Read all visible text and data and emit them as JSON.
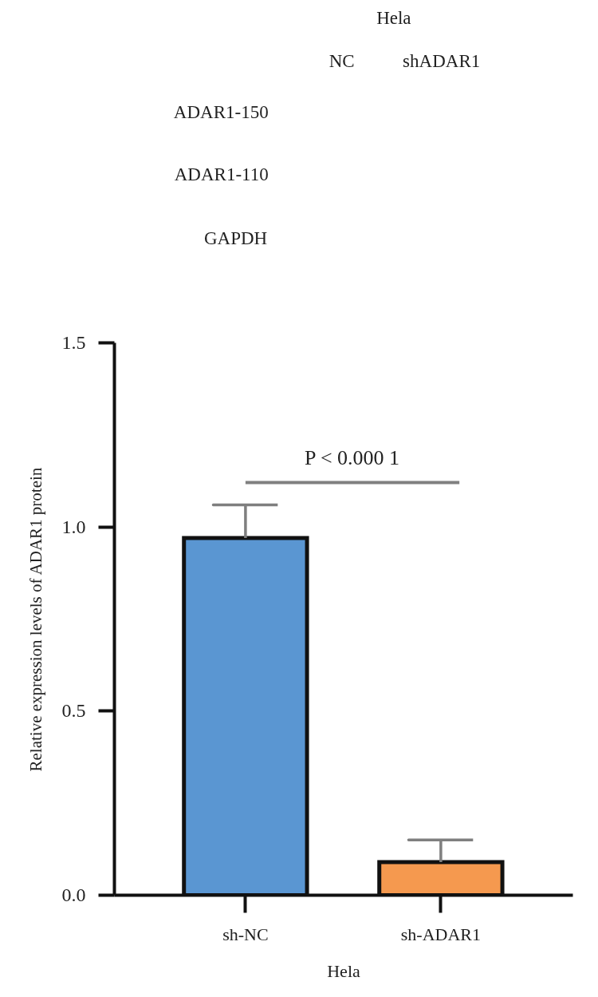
{
  "chart_data": {
    "type": "bar",
    "categories": [
      "sh-NC",
      "sh-ADAR1"
    ],
    "values": [
      0.97,
      0.09
    ],
    "colors": [
      "#5a96d2",
      "#f5994f"
    ],
    "errors": [
      [
        0.97,
        1.06
      ],
      [
        0.09,
        0.15
      ]
    ],
    "xlabel": "Hela",
    "ylabel": "Relative expression levels of ADAR1 protein",
    "ylim": [
      0,
      1.5
    ],
    "yticks": [
      {
        "value": 0,
        "label": "0.0"
      },
      0.5,
      {
        "value": 1,
        "label": "1.0"
      },
      1.5
    ],
    "grid": false,
    "annotations": [
      "Hela",
      "NC",
      "shADAR1",
      "ADAR1-150",
      "ADAR1-110",
      "GAPDH",
      "P < 0.000 1"
    ]
  }
}
